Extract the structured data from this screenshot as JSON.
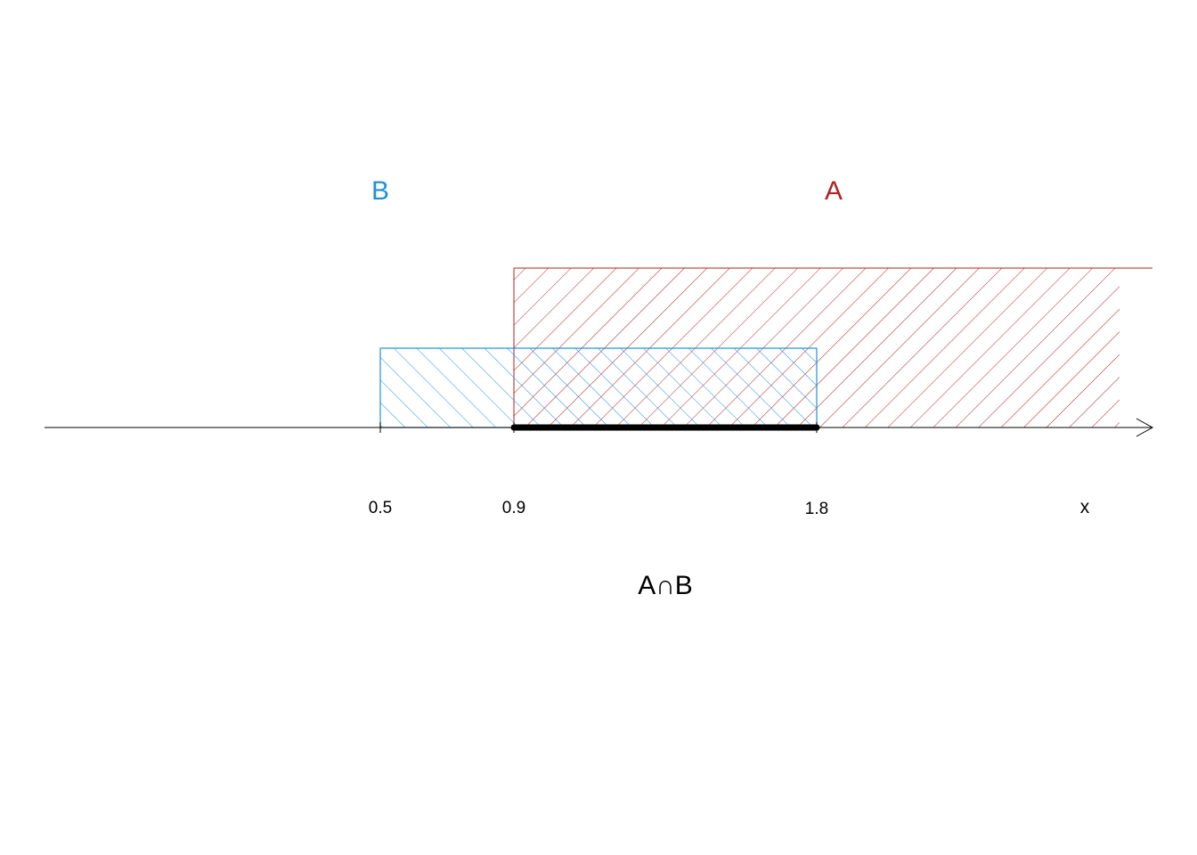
{
  "colors": {
    "set_a": "#b22222",
    "set_b": "#1e90dd",
    "axis": "#000000",
    "intersection": "#000000"
  },
  "sets": [
    {
      "id": "A",
      "label": "A",
      "from": 0.9,
      "to": null,
      "unbounded_right": true
    },
    {
      "id": "B",
      "label": "B",
      "from": 0.5,
      "to": 1.8,
      "unbounded_right": false
    }
  ],
  "axis": {
    "variable_label": "x",
    "ticks": [
      {
        "value": 0.5,
        "label": "0.5"
      },
      {
        "value": 0.9,
        "label": "0.9"
      },
      {
        "value": 1.8,
        "label": "1.8"
      }
    ]
  },
  "intersection": {
    "label": "A∩B",
    "from": 0.9,
    "to": 1.8
  }
}
